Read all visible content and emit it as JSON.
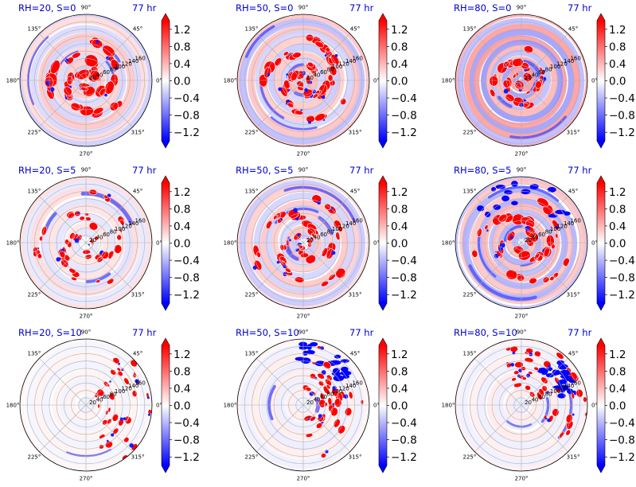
{
  "chart_data": [
    {
      "type": "heatmap",
      "projection": "polar",
      "title": "RH=20, S=0",
      "time_label": "77 hr",
      "rh": 20,
      "s": 0,
      "field_pattern": "strong red spiral bands near center, weak pink/blue rings outward"
    },
    {
      "type": "heatmap",
      "projection": "polar",
      "title": "RH=50, S=0",
      "time_label": "77 hr",
      "rh": 50,
      "s": 0,
      "field_pattern": "red and blue spiral bands near center, weaker outer rings"
    },
    {
      "type": "heatmap",
      "projection": "polar",
      "title": "RH=80, S=0",
      "time_label": "77 hr",
      "rh": 80,
      "s": 0,
      "field_pattern": "compact red/blue core, alternating pink and blue rings"
    },
    {
      "type": "heatmap",
      "projection": "polar",
      "title": "RH=20, S=5",
      "time_label": "77 hr",
      "rh": 20,
      "s": 5,
      "field_pattern": "scattered red cells along spiral arms"
    },
    {
      "type": "heatmap",
      "projection": "polar",
      "title": "RH=50, S=5",
      "time_label": "77 hr",
      "rh": 50,
      "s": 5,
      "field_pattern": "red spiral arms with blue patches"
    },
    {
      "type": "heatmap",
      "projection": "polar",
      "title": "RH=80, S=5",
      "time_label": "77 hr",
      "rh": 80,
      "s": 5,
      "field_pattern": "broad red core with blue arc to the north"
    },
    {
      "type": "heatmap",
      "projection": "polar",
      "title": "RH=20, S=10",
      "time_label": "77 hr",
      "rh": 20,
      "s": 10,
      "field_pattern": "sparse red cells in eastern half"
    },
    {
      "type": "heatmap",
      "projection": "polar",
      "title": "RH=50, S=10",
      "time_label": "77 hr",
      "rh": 50,
      "s": 10,
      "field_pattern": "red and blue convection concentrated to the northeast"
    },
    {
      "type": "heatmap",
      "projection": "polar",
      "title": "RH=80, S=10",
      "time_label": "77 hr",
      "rh": 80,
      "s": 10,
      "field_pattern": "red convection in northeast quadrant with blue patches"
    }
  ],
  "angular_ticks": [
    "0°",
    "45°",
    "90°",
    "135°",
    "180°",
    "225°",
    "270°",
    "315°"
  ],
  "radial_ticks": [
    20,
    40,
    60,
    80,
    100,
    120,
    140,
    160
  ],
  "radial_max": 180,
  "colorbar": {
    "ticks": [
      "1.2",
      "0.8",
      "0.4",
      "0.0",
      "−0.4",
      "−0.8",
      "−1.2"
    ],
    "tick_values": [
      1.2,
      0.8,
      0.4,
      0.0,
      -0.4,
      -0.8,
      -1.2
    ],
    "vmin": -1.4,
    "vmax": 1.4,
    "extend": "both",
    "cmap": "bwr",
    "colors": {
      "low": "#0000ff",
      "mid": "#ffffff",
      "high": "#ff0000"
    }
  }
}
